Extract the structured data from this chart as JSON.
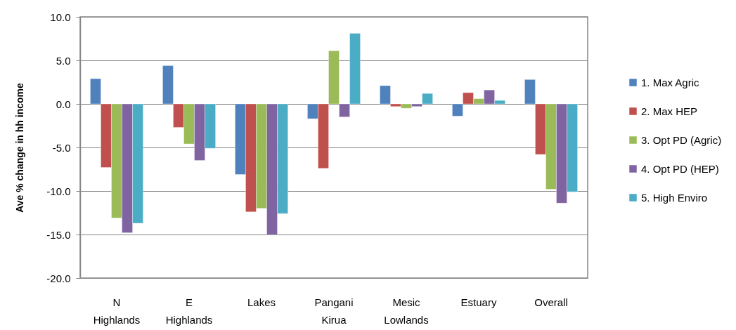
{
  "chart_data": {
    "type": "bar",
    "ylabel": "Ave % change in hh income",
    "categories": [
      "N Highlands",
      "E Highlands",
      "Lakes",
      "Pangani Kirua",
      "Mesic Lowlands",
      "Estuary",
      "Overall"
    ],
    "series": [
      {
        "name": "1. Max Agric",
        "color": "#4f81bd",
        "values": [
          2.9,
          4.4,
          -8.1,
          -1.7,
          2.1,
          -1.4,
          2.8
        ]
      },
      {
        "name": "2. Max HEP",
        "color": "#c0504d",
        "values": [
          -7.3,
          -2.7,
          -12.4,
          -7.4,
          -0.3,
          1.3,
          -5.8
        ]
      },
      {
        "name": "3. Opt PD (Agric)",
        "color": "#9bbb59",
        "values": [
          -13.1,
          -4.6,
          -12.0,
          6.1,
          -0.5,
          0.6,
          -9.8
        ]
      },
      {
        "name": "4. Opt PD (HEP)",
        "color": "#8064a2",
        "values": [
          -14.8,
          -6.5,
          -15.0,
          -1.5,
          -0.3,
          1.6,
          -11.4
        ]
      },
      {
        "name": "5. High Enviro",
        "color": "#4bacc6",
        "values": [
          -13.7,
          -5.1,
          -12.6,
          8.1,
          1.2,
          0.4,
          -10.1
        ]
      }
    ],
    "ylim": [
      -20,
      10
    ],
    "yticks": [
      {
        "value": 10,
        "label": "10.0"
      },
      {
        "value": 5,
        "label": "5.0"
      },
      {
        "value": 0,
        "label": "0.0"
      },
      {
        "value": -5,
        "label": "-5.0"
      },
      {
        "value": -10,
        "label": "-10.0"
      },
      {
        "value": -15,
        "label": "-15.0"
      },
      {
        "value": -20,
        "label": "-20.0"
      }
    ],
    "grid": "y",
    "legend": "right"
  }
}
